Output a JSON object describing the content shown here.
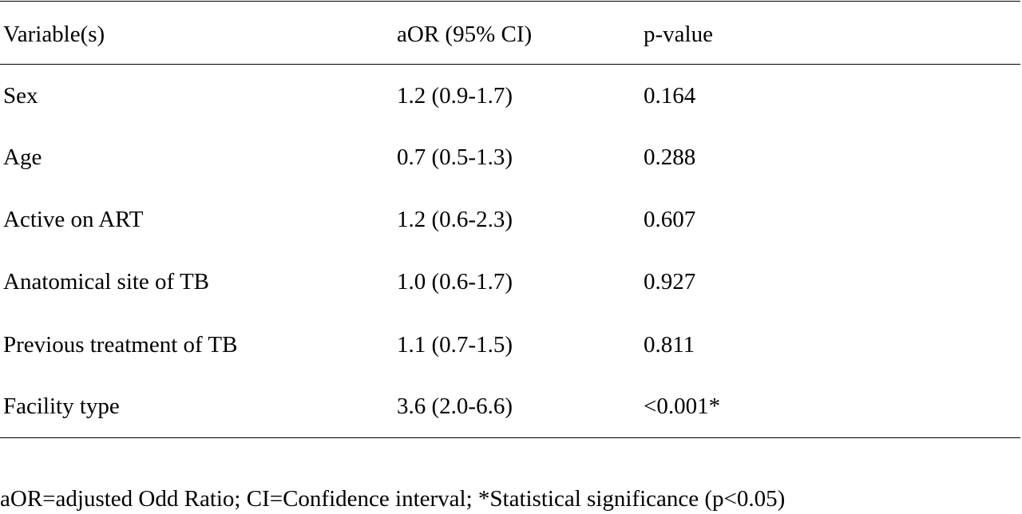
{
  "table": {
    "headers": [
      "Variable(s)",
      "aOR (95% CI)",
      "p-value"
    ],
    "rows": [
      [
        "Sex",
        "1.2 (0.9-1.7)",
        "0.164"
      ],
      [
        "Age",
        "0.7 (0.5-1.3)",
        "0.288"
      ],
      [
        "Active on ART",
        "1.2 (0.6-2.3)",
        "0.607"
      ],
      [
        "Anatomical site of TB",
        "1.0 (0.6-1.7)",
        "0.927"
      ],
      [
        "Previous treatment of TB",
        "1.1 (0.7-1.5)",
        "0.811"
      ],
      [
        "Facility type",
        "3.6 (2.0-6.6)",
        "<0.001*"
      ]
    ]
  },
  "footnote": "aOR=adjusted Odd Ratio; CI=Confidence interval; *Statistical significance (p<0.05)"
}
